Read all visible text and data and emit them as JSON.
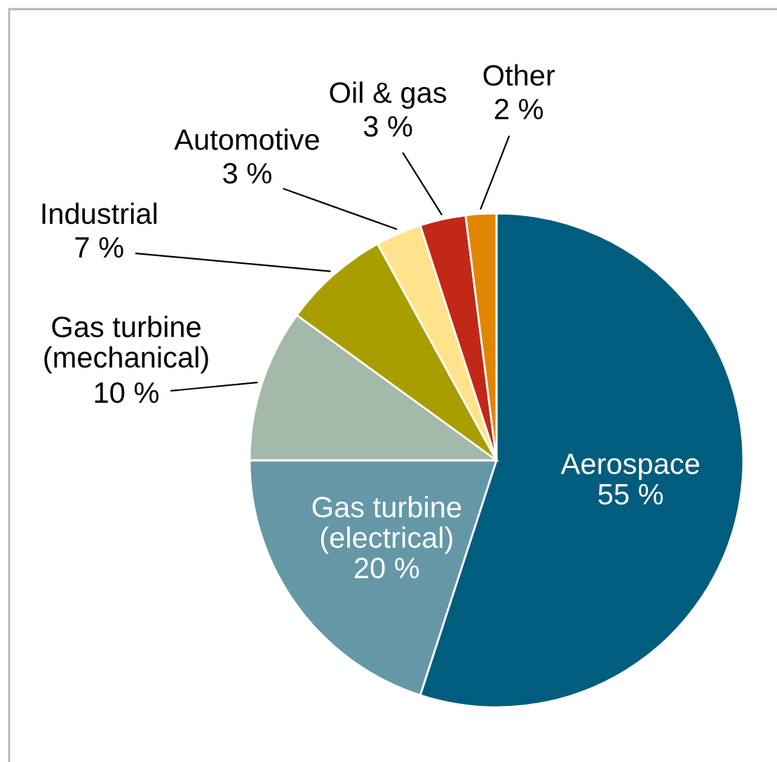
{
  "chart_data": {
    "type": "pie",
    "categories": [
      "Aerospace",
      "Gas turbine\n(electrical)",
      "Gas turbine\n(mechanical)",
      "Industrial",
      "Automotive",
      "Oil & gas",
      "Other"
    ],
    "values": [
      55,
      20,
      10,
      7,
      3,
      3,
      2
    ],
    "colors": [
      "#005d7e",
      "#6598a6",
      "#a3b9aa",
      "#a99e00",
      "#ffe38c",
      "#c22817",
      "#e08600"
    ],
    "value_labels": [
      "55 %",
      "20 %",
      "10 %",
      "7 %",
      "3 %",
      "3 %",
      "2 %"
    ]
  }
}
